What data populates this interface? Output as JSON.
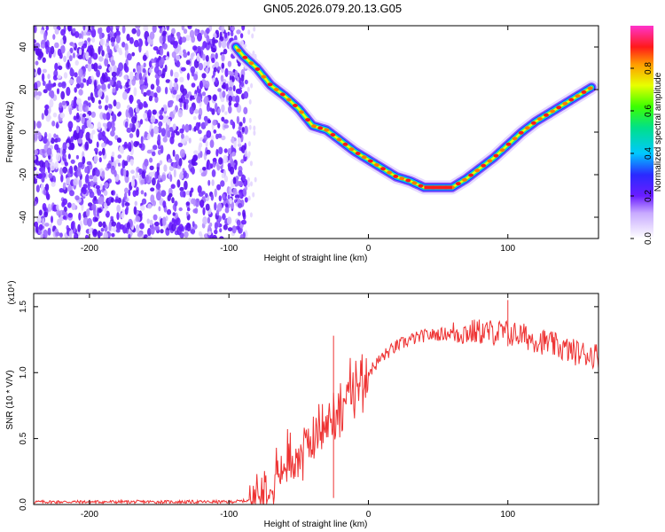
{
  "title": "GN05.2026.079.20.13.G05",
  "chart_data": [
    {
      "type": "heatmap",
      "xlabel": "Height of straight line (km)",
      "ylabel": "Frequency (Hz)",
      "xlim": [
        -240,
        165
      ],
      "ylim": [
        -50,
        50
      ],
      "xticks": [
        -200,
        -100,
        0,
        100
      ],
      "yticks": [
        -40,
        -20,
        0,
        20,
        40
      ],
      "noise_region_x": [
        -240,
        -90
      ],
      "signal_track": {
        "x": [
          -95,
          -90,
          -80,
          -70,
          -60,
          -50,
          -40,
          -30,
          -20,
          -10,
          0,
          10,
          20,
          30,
          40,
          50,
          60,
          70,
          80,
          90,
          100,
          110,
          120,
          130,
          140,
          150,
          160
        ],
        "y": [
          40,
          36,
          30,
          22,
          17,
          11,
          3,
          1,
          -4,
          -9,
          -13,
          -17,
          -21,
          -23,
          -26,
          -26,
          -26,
          -22,
          -17,
          -12,
          -6,
          0,
          5,
          9,
          13,
          17,
          21
        ]
      },
      "colorbar": {
        "label": "Normalized spectral amplitude",
        "range": [
          0.0,
          1.0
        ],
        "ticks": [
          "0.0",
          "0.2",
          "0.4",
          "0.6",
          "0.8"
        ]
      }
    },
    {
      "type": "line",
      "xlabel": "Height of straight line (km)",
      "ylabel": "SNR (10 * V/V)",
      "scale_note": "(x10⁴)",
      "xlim": [
        -240,
        165
      ],
      "ylim": [
        0.0,
        1.6
      ],
      "xticks": [
        -200,
        -100,
        0,
        100
      ],
      "yticks": [
        "0.0",
        "0.5",
        "1.0",
        "1.5"
      ],
      "series": [
        {
          "color": "#ee3333",
          "x": [
            -240,
            -200,
            -150,
            -100,
            -85,
            -80,
            -70,
            -60,
            -50,
            -40,
            -30,
            -20,
            -10,
            0,
            10,
            20,
            30,
            40,
            60,
            80,
            100,
            110,
            120,
            130,
            140,
            150,
            165
          ],
          "y": [
            0.02,
            0.02,
            0.02,
            0.02,
            0.03,
            0.08,
            0.18,
            0.3,
            0.38,
            0.5,
            0.6,
            0.75,
            0.9,
            1.0,
            1.12,
            1.2,
            1.25,
            1.28,
            1.3,
            1.31,
            1.3,
            1.28,
            1.25,
            1.22,
            1.18,
            1.15,
            1.13
          ]
        }
      ]
    }
  ]
}
